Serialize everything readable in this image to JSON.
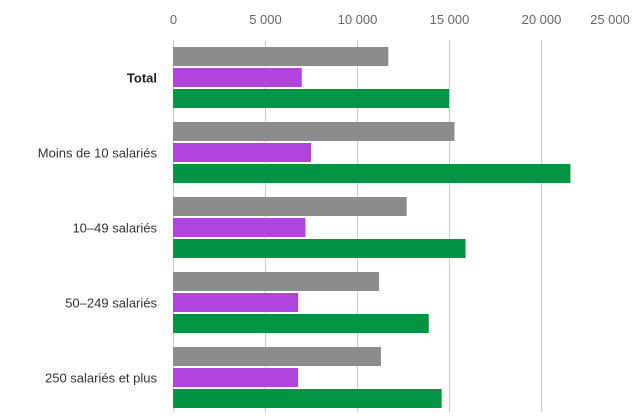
{
  "chart_data": {
    "type": "bar",
    "orientation": "horizontal",
    "categories": [
      "Total",
      "Moins de 10 salariés",
      "10–49 salariés",
      "50–249 salariés",
      "250 salariés et plus"
    ],
    "bold_categories": [
      "Total"
    ],
    "series": [
      {
        "color": "#8c8c8c",
        "values": [
          11700,
          15300,
          12700,
          11200,
          11300
        ]
      },
      {
        "color": "#b044dd",
        "values": [
          7000,
          7500,
          7200,
          6800,
          6800
        ]
      },
      {
        "color": "#009444",
        "values": [
          15000,
          21600,
          15900,
          13900,
          14600
        ]
      }
    ],
    "xlim": [
      0,
      25000
    ],
    "x_ticks": [
      0,
      5000,
      10000,
      15000,
      20000,
      25000
    ],
    "x_tick_labels": [
      "0",
      "5 000",
      "10 000",
      "15 000",
      "20 000",
      "25 000"
    ],
    "x_axis_position": "top",
    "grid": true,
    "title": "",
    "xlabel": "",
    "ylabel": ""
  }
}
